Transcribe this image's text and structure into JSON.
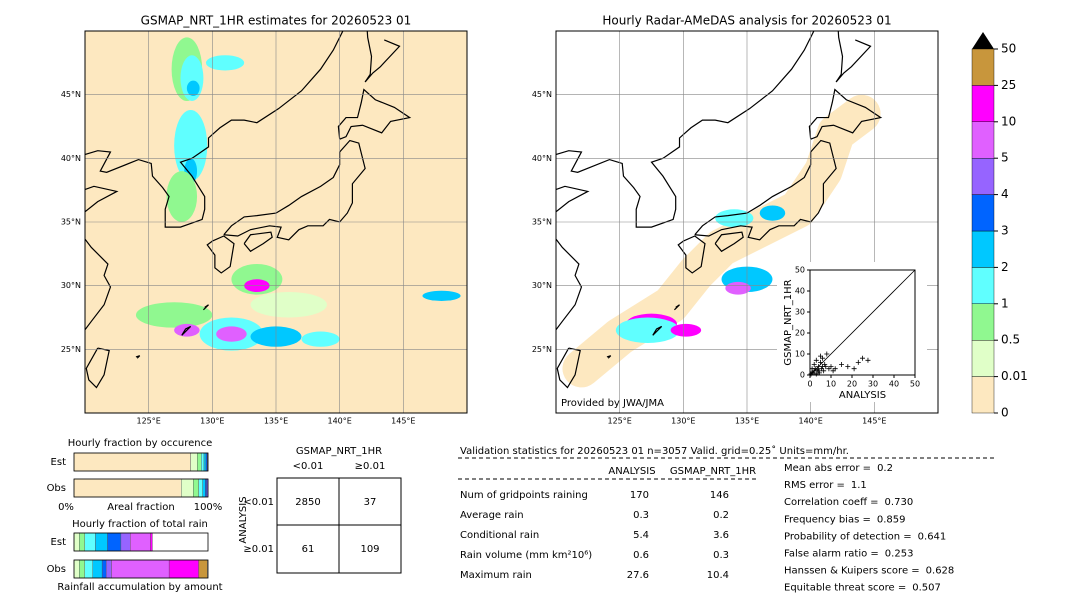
{
  "maps": [
    {
      "title": "GSMAP_NRT_1HR estimates for 20260523 01",
      "lonlim": [
        120,
        150
      ],
      "latlim": [
        20,
        50
      ],
      "lonticks": [
        {
          "value": 125,
          "label": "125°E"
        },
        {
          "value": 130,
          "label": "130°E"
        },
        {
          "value": 135,
          "label": "135°E"
        },
        {
          "value": 140,
          "label": "140°E"
        },
        {
          "value": 145,
          "label": "145°E"
        }
      ],
      "latticks": [
        {
          "value": 25,
          "label": "25°N"
        },
        {
          "value": 30,
          "label": "30°N"
        },
        {
          "value": 35,
          "label": "35°N"
        },
        {
          "value": 40,
          "label": "40°N"
        },
        {
          "value": 45,
          "label": "45°N"
        }
      ]
    },
    {
      "title": "Hourly Radar-AMeDAS analysis for 20260523 01",
      "lonlim": [
        120,
        150
      ],
      "latlim": [
        20,
        50
      ],
      "lonticks": [
        {
          "value": 125,
          "label": "125°E"
        },
        {
          "value": 130,
          "label": "130°E"
        },
        {
          "value": 135,
          "label": "135°E"
        },
        {
          "value": 140,
          "label": "140°E"
        },
        {
          "value": 145,
          "label": "145°E"
        }
      ],
      "latticks": [
        {
          "value": 25,
          "label": "25°N"
        },
        {
          "value": 30,
          "label": "30°N"
        },
        {
          "value": 35,
          "label": "35°N"
        },
        {
          "value": 40,
          "label": "40°N"
        },
        {
          "value": 45,
          "label": "45°N"
        }
      ],
      "credit": "Provided by JWA/JMA"
    }
  ],
  "colorbar": {
    "ticks": [
      0,
      0.01,
      0.5,
      1,
      2,
      3,
      4,
      5,
      10,
      25,
      50
    ],
    "colors": [
      "#fde8c0",
      "#e0ffc8",
      "#90f890",
      "#60ffff",
      "#00c8ff",
      "#0064ff",
      "#9664ff",
      "#e060ff",
      "#ff00ff",
      "#c8963c"
    ]
  },
  "chart_data": [
    {
      "type": "scatter",
      "xlabel": "ANALYSIS",
      "ylabel": "GSMAP_NRT_1HR",
      "xlim": [
        0,
        50
      ],
      "ylim": [
        0,
        50
      ],
      "xticks": [
        0,
        10,
        20,
        30,
        40,
        50
      ],
      "yticks": [
        0,
        10,
        20,
        30,
        40,
        50
      ],
      "color": "#000000",
      "x": [
        0.5,
        1,
        1.5,
        2,
        2.5,
        3,
        3.5,
        4,
        4.5,
        5,
        5.5,
        6,
        6.5,
        7,
        7.5,
        8,
        9,
        10,
        11,
        12,
        15,
        18,
        21,
        23,
        25,
        27.6,
        1,
        2,
        3,
        4,
        5,
        6
      ],
      "y": [
        0.5,
        1.5,
        1,
        2,
        3,
        0.5,
        2.5,
        4,
        1,
        6,
        3,
        8,
        2,
        5,
        4,
        10,
        3,
        4,
        2,
        3,
        5,
        4,
        3,
        6,
        8,
        7,
        3,
        5,
        7,
        2,
        9,
        4
      ]
    },
    {
      "type": "stacked-bar",
      "title": "Hourly fraction by occurence",
      "categories": [
        "Est",
        "Obs"
      ],
      "xlim": [
        0,
        1
      ],
      "values": [
        [
          0.87,
          0.05,
          0.03,
          0.02,
          0.015,
          0.01,
          0.005
        ],
        [
          0.8,
          0.09,
          0.04,
          0.03,
          0.02,
          0.01,
          0.01
        ]
      ],
      "colors": [
        "#fde8c0",
        "#e0ffc8",
        "#90f890",
        "#60ffff",
        "#00c8ff",
        "#0064ff",
        "#9664ff"
      ],
      "x_labels": [
        "0%",
        "Areal fraction",
        "100%"
      ]
    },
    {
      "type": "stacked-bar",
      "title": "Hourly fraction of total rain",
      "categories": [
        "Est",
        "Obs"
      ],
      "xlim": [
        0,
        1
      ],
      "values": [
        [
          0.04,
          0.04,
          0.08,
          0.09,
          0.1,
          0.07,
          0.15,
          0.015,
          0,
          0
        ],
        [
          0.04,
          0.04,
          0.06,
          0.07,
          0.03,
          0.04,
          0.43,
          0.22,
          0.065,
          0
        ]
      ],
      "colors": [
        "#e0ffc8",
        "#90f890",
        "#60ffff",
        "#00c8ff",
        "#0064ff",
        "#9664ff",
        "#e060ff",
        "#ff00ff",
        "#c8963c",
        "#000000"
      ],
      "xlabel": "Rainfall accumulation by amount"
    }
  ],
  "contingency": {
    "title": "GSMAP_NRT_1HR",
    "col_labels": [
      "<0.01",
      "≥0.01"
    ],
    "row_title": "ANALYSIS",
    "row_labels": [
      "<0.01",
      "≥0.01"
    ],
    "cells": [
      [
        2850,
        37
      ],
      [
        61,
        109
      ]
    ]
  },
  "stats": {
    "title": "Validation statistics for 20260523 01  n=3057 Valid. grid=0.25˚ Units=mm/hr.",
    "columns": [
      "ANALYSIS",
      "GSMAP_NRT_1HR"
    ],
    "rows": [
      {
        "label": "Num of gridpoints raining",
        "values": [
          170,
          146
        ]
      },
      {
        "label": "Average rain",
        "values": [
          0.3,
          0.2
        ]
      },
      {
        "label": "Conditional rain",
        "values": [
          5.4,
          3.6
        ]
      },
      {
        "label": "Rain volume (mm km²10⁶)",
        "values": [
          0.6,
          0.3
        ]
      },
      {
        "label": "Maximum rain",
        "values": [
          27.6,
          10.4
        ]
      }
    ],
    "scores": [
      {
        "label": "Mean abs error =",
        "value": 0.2
      },
      {
        "label": "RMS error =",
        "value": 1.1
      },
      {
        "label": "Correlation coeff =",
        "value": "0.730"
      },
      {
        "label": "Frequency bias =",
        "value": 0.859
      },
      {
        "label": "Probability of detection =",
        "value": 0.641
      },
      {
        "label": "False alarm ratio =",
        "value": 0.253
      },
      {
        "label": "Hanssen & Kuipers score =",
        "value": 0.628
      },
      {
        "label": "Equitable threat score =",
        "value": 0.507
      }
    ]
  }
}
